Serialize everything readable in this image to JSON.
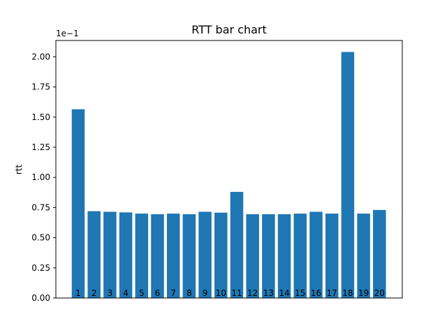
{
  "chart_data": {
    "type": "bar",
    "title": "RTT bar chart",
    "xlabel": "",
    "ylabel": "rtt",
    "y_offset_text": "1e−1",
    "categories": [
      "1",
      "2",
      "3",
      "4",
      "5",
      "6",
      "7",
      "8",
      "9",
      "10",
      "11",
      "12",
      "13",
      "14",
      "15",
      "16",
      "17",
      "18",
      "19",
      "20"
    ],
    "values": [
      1.565,
      0.72,
      0.715,
      0.71,
      0.7,
      0.695,
      0.7,
      0.695,
      0.715,
      0.708,
      0.88,
      0.695,
      0.695,
      0.695,
      0.7,
      0.715,
      0.7,
      2.04,
      0.7,
      0.73
    ],
    "ylim": [
      0,
      2.15
    ],
    "yticks": [
      "0.00",
      "0.25",
      "0.50",
      "0.75",
      "1.00",
      "1.25",
      "1.50",
      "1.75",
      "2.00"
    ],
    "bar_color": "#1f77b4",
    "grid": false
  }
}
